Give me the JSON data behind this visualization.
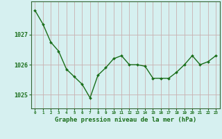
{
  "x": [
    0,
    1,
    2,
    3,
    4,
    5,
    6,
    7,
    8,
    9,
    10,
    11,
    12,
    13,
    14,
    15,
    16,
    17,
    18,
    19,
    20,
    21,
    22,
    23
  ],
  "y": [
    1027.8,
    1027.35,
    1026.75,
    1026.45,
    1025.85,
    1025.6,
    1025.35,
    1024.9,
    1025.65,
    1025.9,
    1026.2,
    1026.3,
    1026.0,
    1026.0,
    1025.95,
    1025.55,
    1025.55,
    1025.55,
    1025.75,
    1026.0,
    1026.3,
    1026.0,
    1026.1,
    1026.3
  ],
  "line_color": "#1a6e1a",
  "marker_color": "#1a6e1a",
  "bg_color": "#d6f0f0",
  "grid_color_x": "#c8b0b0",
  "grid_color_y": "#c8b0b0",
  "xlabel": "Graphe pression niveau de la mer (hPa)",
  "xlabel_color": "#1a6e1a",
  "ylabel_ticks": [
    1025,
    1026,
    1027
  ],
  "ylim": [
    1024.55,
    1028.1
  ],
  "xlim": [
    -0.5,
    23.5
  ],
  "xtick_labels": [
    "0",
    "1",
    "2",
    "3",
    "4",
    "5",
    "6",
    "7",
    "8",
    "9",
    "10",
    "11",
    "12",
    "13",
    "14",
    "15",
    "16",
    "17",
    "18",
    "19",
    "20",
    "21",
    "22",
    "23"
  ],
  "axis_color": "#336633",
  "tick_color": "#1a6e1a",
  "spine_color": "#336633"
}
